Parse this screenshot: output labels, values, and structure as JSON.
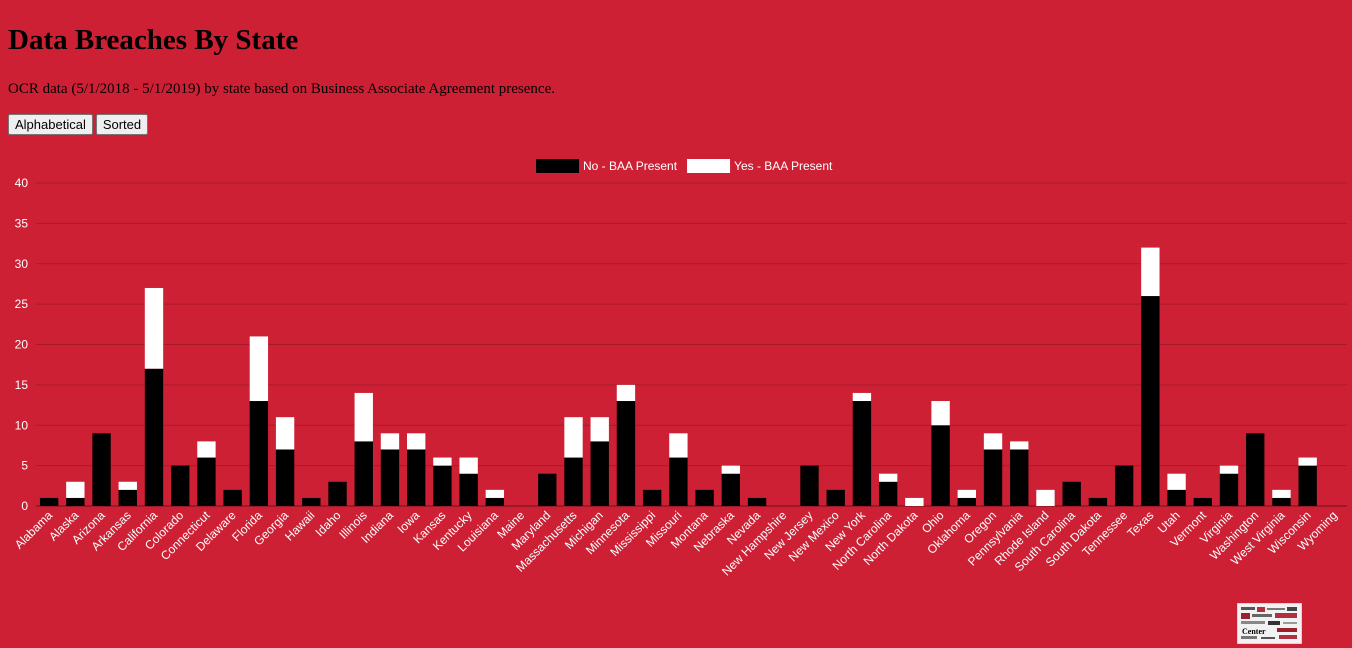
{
  "header": {
    "title": "Data Breaches By State",
    "subtitle": "OCR data (5/1/2018 - 5/1/2019) by state based on Business Associate Agreement presence."
  },
  "controls": {
    "alphabetical_label": "Alphabetical",
    "sorted_label": "Sorted"
  },
  "colors": {
    "background": "#cd2034",
    "no_baa": "#000000",
    "yes_baa": "#ffffff",
    "text": "#ffffff"
  },
  "logo": {
    "icon": "center-word-cloud-logo",
    "text": "Center"
  },
  "chart_data": {
    "type": "bar",
    "stacked": true,
    "ylim": [
      0,
      40
    ],
    "yticks": [
      0,
      5,
      10,
      15,
      20,
      25,
      30,
      35,
      40
    ],
    "grid": true,
    "legend_position": "top",
    "categories": [
      "Alabama",
      "Alaska",
      "Arizona",
      "Arkansas",
      "California",
      "Colorado",
      "Connecticut",
      "Delaware",
      "Florida",
      "Georgia",
      "Hawaii",
      "Idaho",
      "Illinois",
      "Indiana",
      "Iowa",
      "Kansas",
      "Kentucky",
      "Louisiana",
      "Maine",
      "Maryland",
      "Massachusetts",
      "Michigan",
      "Minnesota",
      "Mississippi",
      "Missouri",
      "Montana",
      "Nebraska",
      "Nevada",
      "New Hampshire",
      "New Jersey",
      "New Mexico",
      "New York",
      "North Carolina",
      "North Dakota",
      "Ohio",
      "Oklahoma",
      "Oregon",
      "Pennsylvania",
      "Rhode Island",
      "South Carolina",
      "South Dakota",
      "Tennessee",
      "Texas",
      "Utah",
      "Vermont",
      "Virginia",
      "Washington",
      "West Virginia",
      "Wisconsin",
      "Wyoming"
    ],
    "series": [
      {
        "name": "No - BAA Present",
        "color": "#000000",
        "values": [
          1,
          1,
          9,
          2,
          17,
          5,
          6,
          2,
          13,
          7,
          1,
          3,
          8,
          7,
          7,
          5,
          4,
          1,
          0,
          4,
          6,
          8,
          13,
          2,
          6,
          2,
          4,
          1,
          0,
          5,
          2,
          13,
          3,
          0,
          10,
          1,
          7,
          7,
          0,
          3,
          1,
          5,
          26,
          2,
          1,
          4,
          9,
          1,
          5,
          0
        ]
      },
      {
        "name": "Yes - BAA Present",
        "color": "#ffffff",
        "values": [
          0,
          2,
          0,
          1,
          10,
          0,
          2,
          0,
          8,
          4,
          0,
          0,
          6,
          2,
          2,
          1,
          2,
          1,
          0,
          0,
          5,
          3,
          2,
          0,
          3,
          0,
          1,
          0,
          0,
          0,
          0,
          1,
          1,
          1,
          3,
          1,
          2,
          1,
          2,
          0,
          0,
          0,
          6,
          2,
          0,
          1,
          0,
          1,
          1,
          0
        ]
      }
    ]
  }
}
